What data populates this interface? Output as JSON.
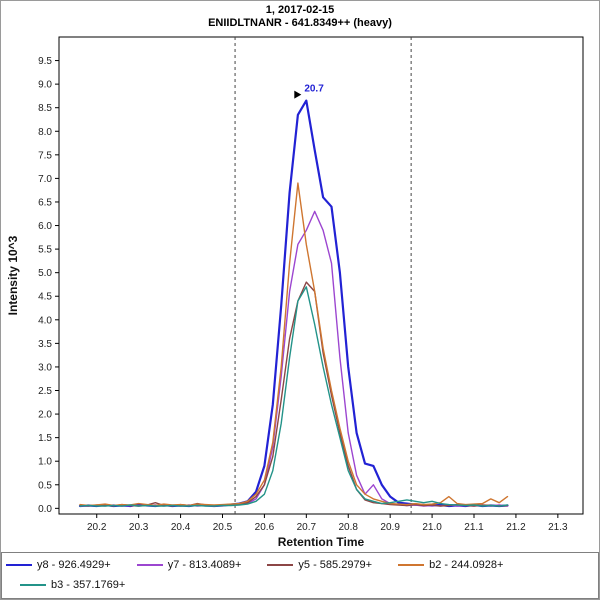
{
  "header": {
    "title": "1, 2017-02-15",
    "subtitle": "ENIIDLTNANR - 641.8349++ (heavy)"
  },
  "chart_data": {
    "type": "line",
    "title": "1, 2017-02-15",
    "subtitle": "ENIIDLTNANR - 641.8349++ (heavy)",
    "xlabel": "Retention Time",
    "ylabel": "Intensity 10^3",
    "xlim": [
      20.11,
      21.36
    ],
    "ylim": [
      -0.12,
      10.0
    ],
    "xticks": [
      "20.2",
      "20.3",
      "20.4",
      "20.5",
      "20.6",
      "20.7",
      "20.8",
      "20.9",
      "21.0",
      "21.1",
      "21.2",
      "21.3"
    ],
    "yticks": [
      "0.0",
      "0.5",
      "1.0",
      "1.5",
      "2.0",
      "2.5",
      "3.0",
      "3.5",
      "4.0",
      "4.5",
      "5.0",
      "5.5",
      "6.0",
      "6.5",
      "7.0",
      "7.5",
      "8.0",
      "8.5",
      "9.0",
      "9.5"
    ],
    "grid": false,
    "legend_position": "bottom",
    "boundaries": [
      20.53,
      20.95
    ],
    "boundary_style": "dashed",
    "peak_annotation": {
      "text": "20.7",
      "x": 20.7,
      "y": 8.65
    },
    "annotation_color": "#2222d4",
    "x": [
      20.16,
      20.18,
      20.2,
      20.22,
      20.24,
      20.26,
      20.28,
      20.3,
      20.32,
      20.34,
      20.36,
      20.38,
      20.4,
      20.42,
      20.44,
      20.46,
      20.48,
      20.5,
      20.52,
      20.54,
      20.56,
      20.58,
      20.6,
      20.62,
      20.64,
      20.66,
      20.68,
      20.7,
      20.72,
      20.74,
      20.76,
      20.78,
      20.8,
      20.82,
      20.84,
      20.86,
      20.88,
      20.9,
      20.92,
      20.94,
      20.96,
      20.98,
      21.0,
      21.02,
      21.04,
      21.06,
      21.08,
      21.1,
      21.12,
      21.14,
      21.16,
      21.18
    ],
    "series": [
      {
        "name": "y8 - 926.4929+",
        "color": "#2222d4",
        "width": 2.2,
        "y": [
          0.05,
          0.06,
          0.05,
          0.07,
          0.05,
          0.06,
          0.05,
          0.08,
          0.06,
          0.05,
          0.07,
          0.05,
          0.06,
          0.05,
          0.07,
          0.06,
          0.05,
          0.06,
          0.08,
          0.1,
          0.15,
          0.35,
          0.9,
          2.2,
          4.3,
          6.7,
          8.35,
          8.65,
          7.6,
          6.6,
          6.4,
          5.0,
          3.0,
          1.6,
          0.95,
          0.9,
          0.5,
          0.25,
          0.12,
          0.1,
          0.08,
          0.07,
          0.06,
          0.07,
          0.05,
          0.06,
          0.05,
          0.07,
          0.05,
          0.06,
          0.05,
          0.06
        ]
      },
      {
        "name": "y7 - 813.4089+",
        "color": "#9c46d0",
        "width": 1.4,
        "y": [
          0.05,
          0.05,
          0.06,
          0.05,
          0.07,
          0.05,
          0.06,
          0.05,
          0.06,
          0.07,
          0.05,
          0.06,
          0.05,
          0.07,
          0.05,
          0.06,
          0.05,
          0.06,
          0.07,
          0.08,
          0.1,
          0.2,
          0.5,
          1.3,
          2.8,
          4.6,
          5.6,
          5.9,
          6.3,
          5.9,
          5.2,
          3.2,
          1.6,
          0.7,
          0.3,
          0.5,
          0.2,
          0.1,
          0.08,
          0.06,
          0.07,
          0.05,
          0.06,
          0.05,
          0.07,
          0.05,
          0.06,
          0.05,
          0.06,
          0.05,
          0.07,
          0.05
        ]
      },
      {
        "name": "y5 - 585.2979+",
        "color": "#8c4646",
        "width": 1.4,
        "y": [
          0.06,
          0.05,
          0.07,
          0.06,
          0.05,
          0.08,
          0.06,
          0.05,
          0.07,
          0.12,
          0.06,
          0.05,
          0.08,
          0.06,
          0.1,
          0.07,
          0.05,
          0.06,
          0.07,
          0.09,
          0.12,
          0.25,
          0.5,
          1.1,
          2.3,
          3.6,
          4.4,
          4.8,
          4.6,
          3.3,
          2.4,
          1.6,
          0.9,
          0.4,
          0.18,
          0.12,
          0.1,
          0.08,
          0.07,
          0.06,
          0.08,
          0.06,
          0.07,
          0.05,
          0.06,
          0.08,
          0.06,
          0.05,
          0.07,
          0.06,
          0.05,
          0.06
        ]
      },
      {
        "name": "b2 - 244.0928+",
        "color": "#cf7630",
        "width": 1.4,
        "y": [
          0.08,
          0.06,
          0.07,
          0.09,
          0.06,
          0.08,
          0.07,
          0.1,
          0.08,
          0.06,
          0.09,
          0.07,
          0.08,
          0.06,
          0.09,
          0.08,
          0.07,
          0.08,
          0.09,
          0.1,
          0.15,
          0.3,
          0.6,
          1.4,
          3.0,
          5.2,
          6.9,
          5.6,
          4.6,
          3.4,
          2.5,
          1.7,
          1.0,
          0.5,
          0.3,
          0.2,
          0.15,
          0.1,
          0.09,
          0.08,
          0.1,
          0.08,
          0.09,
          0.12,
          0.25,
          0.1,
          0.08,
          0.09,
          0.1,
          0.2,
          0.12,
          0.25
        ]
      },
      {
        "name": "b3 - 357.1769+",
        "color": "#239389",
        "width": 1.4,
        "y": [
          0.05,
          0.06,
          0.05,
          0.05,
          0.06,
          0.05,
          0.07,
          0.05,
          0.06,
          0.05,
          0.05,
          0.06,
          0.05,
          0.05,
          0.06,
          0.05,
          0.05,
          0.06,
          0.06,
          0.07,
          0.09,
          0.15,
          0.3,
          0.8,
          1.8,
          3.2,
          4.4,
          4.7,
          3.9,
          3.0,
          2.2,
          1.5,
          0.8,
          0.4,
          0.2,
          0.15,
          0.1,
          0.12,
          0.15,
          0.18,
          0.15,
          0.12,
          0.15,
          0.1,
          0.08,
          0.07,
          0.06,
          0.07,
          0.05,
          0.06,
          0.05,
          0.07
        ]
      }
    ],
    "legend_rows": [
      [
        0,
        1,
        2,
        3
      ],
      [
        4
      ]
    ]
  }
}
